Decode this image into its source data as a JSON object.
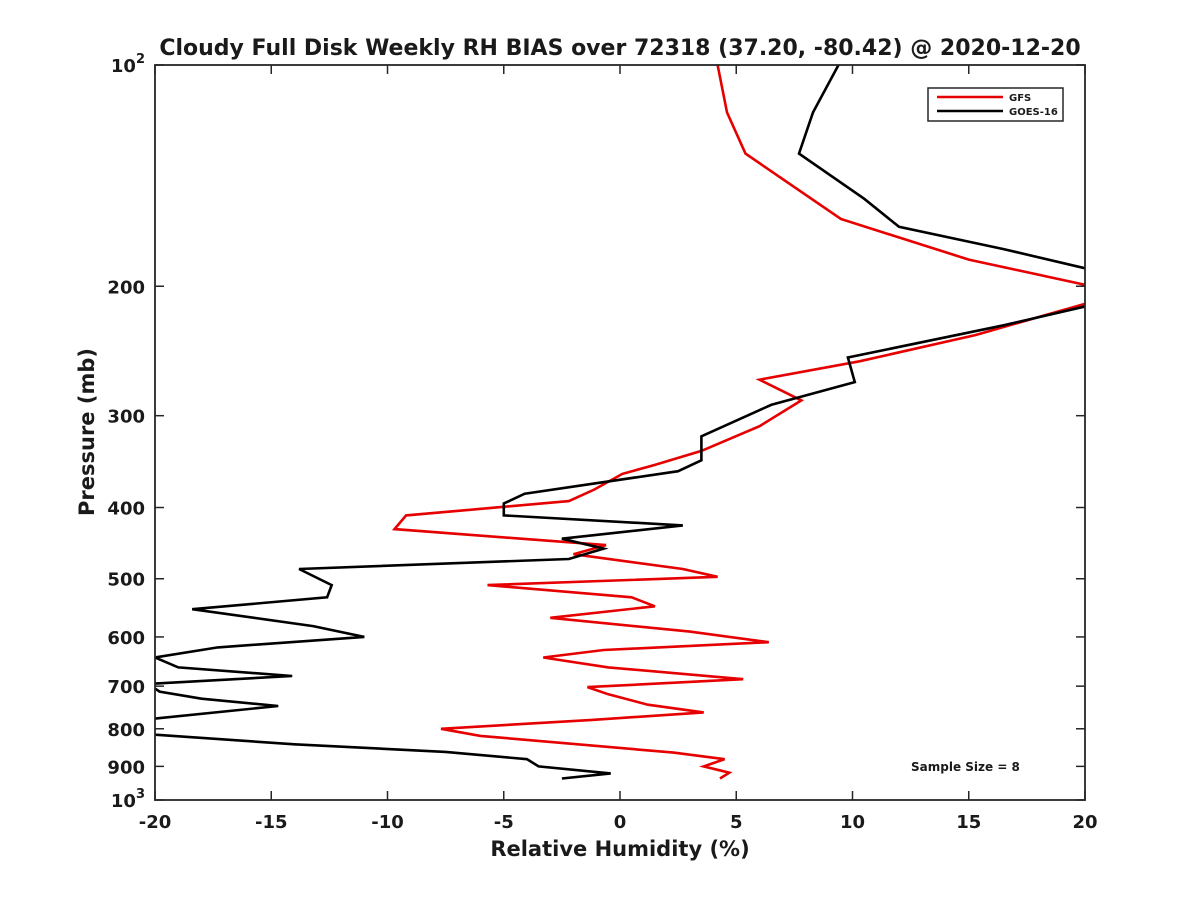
{
  "chart_data": {
    "type": "line",
    "title": "Cloudy Full Disk Weekly RH BIAS over 72318 (37.20, -80.42) @ 2020-12-20",
    "xlabel": "Relative Humidity (%)",
    "ylabel": "Pressure (mb)",
    "xlim": [
      -20,
      20
    ],
    "ylim": [
      100,
      1000
    ],
    "yscale": "log",
    "y_reversed": true,
    "grid": false,
    "legend_position": "top-right",
    "x_ticks": [
      -20,
      -15,
      -10,
      -5,
      0,
      5,
      10,
      15,
      20
    ],
    "x_tick_labels": [
      "-20",
      "-15",
      "-10",
      "-5",
      "0",
      "5",
      "10",
      "15",
      "20"
    ],
    "y_ticks": [
      100,
      200,
      300,
      400,
      500,
      600,
      700,
      800,
      900,
      1000
    ],
    "y_tick_labels": [
      {
        "base": "10",
        "exp": "2"
      },
      {
        "base": "200",
        "exp": ""
      },
      {
        "base": "300",
        "exp": ""
      },
      {
        "base": "400",
        "exp": ""
      },
      {
        "base": "500",
        "exp": ""
      },
      {
        "base": "600",
        "exp": ""
      },
      {
        "base": "700",
        "exp": ""
      },
      {
        "base": "800",
        "exp": ""
      },
      {
        "base": "900",
        "exp": ""
      },
      {
        "base": "10",
        "exp": "3"
      }
    ],
    "annotation": "Sample Size = 8",
    "series": [
      {
        "name": "GFS",
        "color": "#e60000",
        "points": [
          {
            "x": 4.2,
            "p": 100
          },
          {
            "x": 4.6,
            "p": 116
          },
          {
            "x": 5.4,
            "p": 132
          },
          {
            "x": 9.5,
            "p": 162
          },
          {
            "x": 15.0,
            "p": 184
          },
          {
            "x": 20.3,
            "p": 200
          },
          {
            "x": 20.3,
            "p": 210
          },
          {
            "x": 15.3,
            "p": 233
          },
          {
            "x": 10.3,
            "p": 253
          },
          {
            "x": 6.0,
            "p": 268
          },
          {
            "x": 7.8,
            "p": 286
          },
          {
            "x": 6.0,
            "p": 310
          },
          {
            "x": 3.5,
            "p": 335
          },
          {
            "x": 1.5,
            "p": 350
          },
          {
            "x": 0.1,
            "p": 360
          },
          {
            "x": -1.1,
            "p": 378
          },
          {
            "x": -2.2,
            "p": 392
          },
          {
            "x": -9.2,
            "p": 410
          },
          {
            "x": -9.7,
            "p": 428
          },
          {
            "x": -0.6,
            "p": 450
          },
          {
            "x": -2.0,
            "p": 463
          },
          {
            "x": 2.7,
            "p": 485
          },
          {
            "x": 4.2,
            "p": 497
          },
          {
            "x": -5.7,
            "p": 510
          },
          {
            "x": 0.5,
            "p": 530
          },
          {
            "x": 1.5,
            "p": 545
          },
          {
            "x": -3.0,
            "p": 565
          },
          {
            "x": 3.0,
            "p": 590
          },
          {
            "x": 6.4,
            "p": 610
          },
          {
            "x": -0.7,
            "p": 625
          },
          {
            "x": -3.3,
            "p": 640
          },
          {
            "x": -0.5,
            "p": 660
          },
          {
            "x": 5.3,
            "p": 685
          },
          {
            "x": -1.4,
            "p": 702
          },
          {
            "x": -0.5,
            "p": 718
          },
          {
            "x": 1.2,
            "p": 742
          },
          {
            "x": 3.6,
            "p": 760
          },
          {
            "x": -1.2,
            "p": 778
          },
          {
            "x": -7.7,
            "p": 800
          },
          {
            "x": -6.0,
            "p": 818
          },
          {
            "x": 2.3,
            "p": 862
          },
          {
            "x": 4.5,
            "p": 880
          },
          {
            "x": 3.6,
            "p": 900
          },
          {
            "x": 4.7,
            "p": 918
          },
          {
            "x": 4.3,
            "p": 935
          }
        ]
      },
      {
        "name": "GOES-16",
        "color": "#000000",
        "points": [
          {
            "x": 9.4,
            "p": 100
          },
          {
            "x": 8.3,
            "p": 116
          },
          {
            "x": 7.7,
            "p": 132
          },
          {
            "x": 10.5,
            "p": 152
          },
          {
            "x": 12.0,
            "p": 166
          },
          {
            "x": 16.5,
            "p": 178
          },
          {
            "x": 20.3,
            "p": 190
          },
          {
            "x": 20.3,
            "p": 212
          },
          {
            "x": 16.5,
            "p": 226
          },
          {
            "x": 9.8,
            "p": 250
          },
          {
            "x": 10.1,
            "p": 270
          },
          {
            "x": 6.5,
            "p": 290
          },
          {
            "x": 3.5,
            "p": 320
          },
          {
            "x": 3.5,
            "p": 345
          },
          {
            "x": 2.5,
            "p": 357
          },
          {
            "x": -4.1,
            "p": 383
          },
          {
            "x": -5.0,
            "p": 395
          },
          {
            "x": -5.0,
            "p": 410
          },
          {
            "x": 2.7,
            "p": 423
          },
          {
            "x": -2.5,
            "p": 441
          },
          {
            "x": -0.7,
            "p": 455
          },
          {
            "x": -2.2,
            "p": 470
          },
          {
            "x": -13.8,
            "p": 485
          },
          {
            "x": -12.4,
            "p": 510
          },
          {
            "x": -12.6,
            "p": 530
          },
          {
            "x": -18.4,
            "p": 550
          },
          {
            "x": -13.2,
            "p": 580
          },
          {
            "x": -11.0,
            "p": 600
          },
          {
            "x": -17.3,
            "p": 620
          },
          {
            "x": -20.0,
            "p": 640
          },
          {
            "x": -19.0,
            "p": 660
          },
          {
            "x": -14.1,
            "p": 678
          },
          {
            "x": -20.3,
            "p": 695
          },
          {
            "x": -19.8,
            "p": 712
          },
          {
            "x": -18.0,
            "p": 728
          },
          {
            "x": -14.7,
            "p": 745
          },
          {
            "x": -20.0,
            "p": 775
          },
          {
            "x": -20.3,
            "p": 800
          },
          {
            "x": -20.0,
            "p": 815
          },
          {
            "x": -14.0,
            "p": 840
          },
          {
            "x": -7.5,
            "p": 860
          },
          {
            "x": -4.0,
            "p": 880
          },
          {
            "x": -3.5,
            "p": 900
          },
          {
            "x": -0.4,
            "p": 920
          },
          {
            "x": -2.5,
            "p": 935
          }
        ]
      }
    ]
  }
}
